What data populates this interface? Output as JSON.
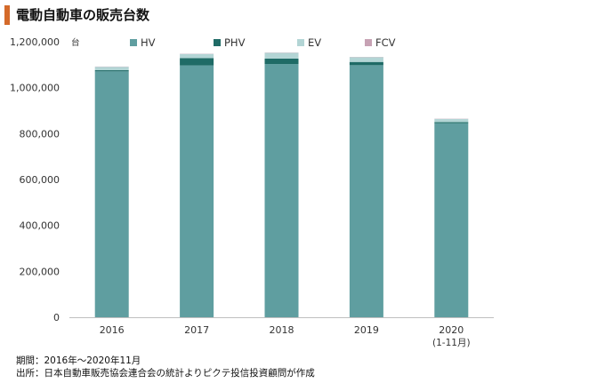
{
  "title": "電動自動車の販売台数",
  "colors": {
    "accent": "#d46a2a",
    "HV": "#5f9ea0",
    "PHV": "#1f6b66",
    "EV": "#b3d5d5",
    "FCV": "#c7a2b4"
  },
  "chart_data": {
    "type": "bar",
    "stacked": true,
    "unit_label": "台",
    "categories": [
      "2016",
      "2017",
      "2018",
      "2019",
      "2020"
    ],
    "category_sublabels": [
      "",
      "",
      "",
      "",
      "(1-11月)"
    ],
    "series": [
      {
        "name": "HV",
        "values": [
          1071000,
          1097000,
          1103000,
          1098000,
          845000
        ]
      },
      {
        "name": "PHV",
        "values": [
          5000,
          32000,
          24000,
          14000,
          5000
        ]
      },
      {
        "name": "EV",
        "values": [
          15000,
          18000,
          25000,
          21000,
          14000
        ]
      },
      {
        "name": "FCV",
        "values": [
          1000,
          1000,
          1000,
          1000,
          1000
        ]
      }
    ],
    "yticks": [
      "0",
      "200,000",
      "400,000",
      "600,000",
      "800,000",
      "1,000,000",
      "1,200,000"
    ],
    "ylim": [
      0,
      1200000
    ],
    "legend_position": "top",
    "grid": false
  },
  "footnotes": {
    "period": "期間：2016年～2020年11月",
    "source": "出所：日本自動車販売協会連合会の統計よりピクテ投信投資顧問が作成"
  }
}
